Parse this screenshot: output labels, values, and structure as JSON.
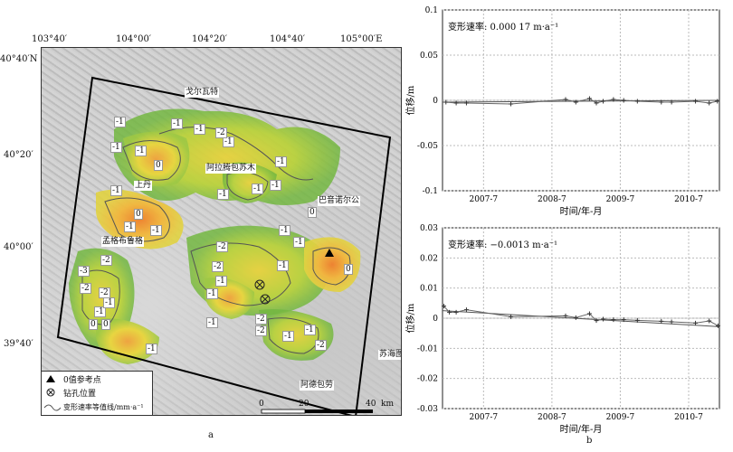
{
  "map": {
    "top_ticks": [
      "103°40′",
      "104°00′",
      "104°20′",
      "104°40′",
      "105°00′E"
    ],
    "left_ticks": [
      "40°40′N",
      "40°20′",
      "40°00′",
      "39°40′"
    ],
    "places": [
      "戈尔瓦特",
      "阿拉腾包苏木",
      "上丹",
      "巴音诺尔公",
      "孟格布鲁格",
      "苏海图",
      "阿德包劳"
    ],
    "contour_labels": [
      "-1",
      "-1",
      "-1",
      "-1",
      "-2",
      "-1",
      "-1",
      "0",
      "-1",
      "0",
      "-1",
      "-1",
      "-1",
      "-1",
      "-1",
      "-1",
      "0",
      "-1",
      "-1",
      "-2",
      "-2",
      "-1",
      "-3",
      "-2",
      "-2",
      "-1",
      "-2",
      "-1",
      "0",
      "0",
      "-1",
      "-1",
      "-2",
      "-1",
      "-2",
      "-1",
      "-1",
      "-2",
      "0",
      "-1"
    ],
    "scale": {
      "labels": [
        "0",
        "20",
        "40"
      ],
      "unit": "km"
    },
    "legend": {
      "ref_point": "0值参考点",
      "borehole": "钻孔位置",
      "contour": "变形速率等值线/mm·a⁻¹"
    },
    "caption": "a"
  },
  "caption_b": "b",
  "chart_data": [
    {
      "type": "line",
      "title": "变形速率: 0.000 17 m·a⁻¹",
      "xlabel": "时间/年-月",
      "ylabel": "位移/m",
      "x_ticks": [
        "2007-7",
        "2008-7",
        "2009-7",
        "2010-7"
      ],
      "y_ticks": [
        "0.1",
        "0.05",
        "0",
        "-0.05",
        "-0.1"
      ],
      "ylim": [
        -0.1,
        0.1
      ],
      "xlim": [
        2006.9,
        2010.95
      ],
      "grid": true,
      "x": [
        2006.95,
        2007.1,
        2007.25,
        2007.9,
        2008.7,
        2008.85,
        2009.05,
        2009.15,
        2009.25,
        2009.4,
        2009.55,
        2009.75,
        2010.1,
        2010.25,
        2010.6,
        2010.8,
        2010.92
      ],
      "y": [
        -0.002,
        -0.003,
        -0.003,
        -0.004,
        0.001,
        -0.002,
        0.002,
        -0.003,
        -0.001,
        0.001,
        0.0,
        -0.001,
        -0.002,
        -0.002,
        -0.001,
        -0.003,
        -0.001
      ],
      "trend": [
        -0.002,
        0.0
      ]
    },
    {
      "type": "line",
      "title": "变形速率: −0.0013 m·a⁻¹",
      "xlabel": "时间/年-月",
      "ylabel": "位移/m",
      "x_ticks": [
        "2007-7",
        "2008-7",
        "2009-7",
        "2010-7"
      ],
      "y_ticks": [
        "0.03",
        "0.02",
        "0.01",
        "0",
        "-0.01",
        "-0.02",
        "-0.03"
      ],
      "ylim": [
        -0.03,
        0.03
      ],
      "xlim": [
        2006.9,
        2010.95
      ],
      "grid": true,
      "x": [
        2006.92,
        2007.0,
        2007.1,
        2007.25,
        2007.9,
        2008.7,
        2008.85,
        2009.05,
        2009.15,
        2009.25,
        2009.4,
        2009.55,
        2009.75,
        2010.1,
        2010.25,
        2010.6,
        2010.8,
        2010.93
      ],
      "y": [
        0.004,
        0.002,
        0.002,
        0.0028,
        0.0005,
        0.0008,
        0.0002,
        0.0015,
        -0.0008,
        -0.0003,
        -0.0005,
        -0.0005,
        -0.0007,
        -0.001,
        -0.0012,
        -0.0016,
        -0.0009,
        -0.0025
      ],
      "trend": [
        0.0025,
        -0.0028
      ]
    }
  ],
  "colors": {
    "ref_point": "#000000",
    "contour": "#555555",
    "green": "#7cbc3a",
    "yellow": "#e9d63a",
    "orange": "#f0a13a"
  }
}
